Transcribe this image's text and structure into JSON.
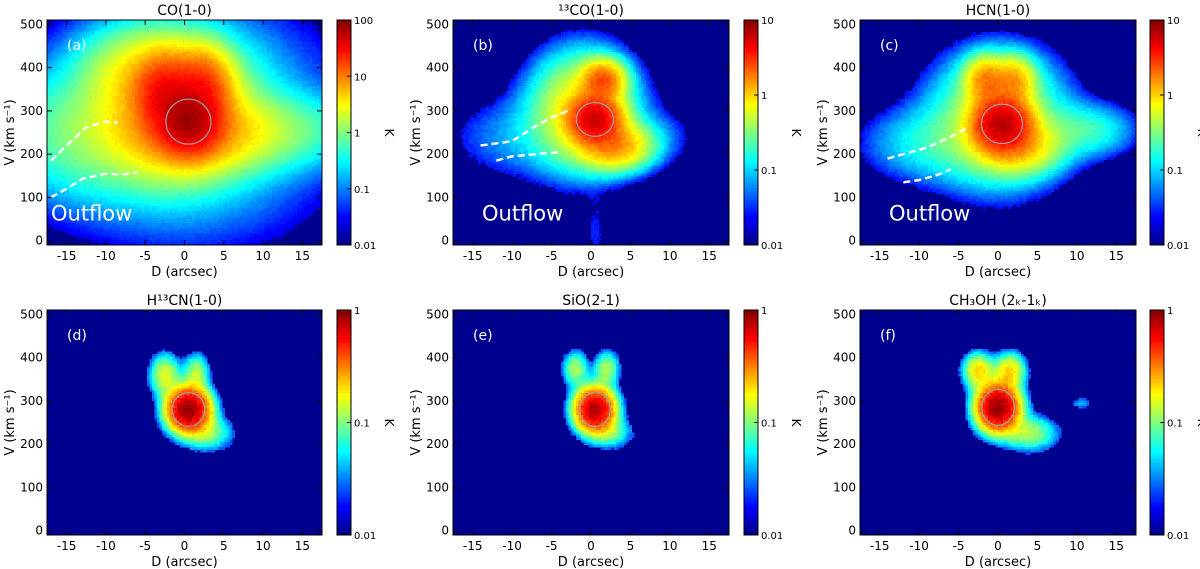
{
  "colors": {
    "background": "#00008f",
    "contour": "#a0a0a0",
    "outflow_line": "#ffffff"
  },
  "chart_data": [
    {
      "type": "heatmap",
      "panel": "(a)",
      "title": "CO(1-0)",
      "xlabel": "D (arcsec)",
      "ylabel": "V (km s⁻¹)",
      "xlim": [
        -17.5,
        17.5
      ],
      "ylim": [
        -10,
        510
      ],
      "xticks": [
        -15,
        -10,
        -5,
        0,
        5,
        10,
        15
      ],
      "yticks": [
        0,
        100,
        200,
        300,
        400,
        500
      ],
      "colorbar": {
        "label": "K",
        "scale": "log",
        "min": 0.01,
        "max": 100,
        "ticks": [
          "0.01",
          "0.1",
          "1",
          "10",
          "100"
        ]
      },
      "peak": {
        "x": 0.5,
        "y": 275,
        "value": 60
      },
      "components": [
        {
          "x": 0.5,
          "y": 275,
          "sx": 2.2,
          "sy": 40,
          "value": 55
        },
        {
          "x": -2.5,
          "y": 340,
          "sx": 2.0,
          "sy": 45,
          "value": 25
        },
        {
          "x": 2.0,
          "y": 350,
          "sx": 2.0,
          "sy": 45,
          "value": 20
        },
        {
          "x": -1.0,
          "y": 300,
          "sx": 4.5,
          "sy": 75,
          "value": 8
        },
        {
          "x": 1.0,
          "y": 250,
          "sx": 5.0,
          "sy": 45,
          "value": 6
        },
        {
          "x": -5.0,
          "y": 380,
          "sx": 4.0,
          "sy": 55,
          "value": 3
        },
        {
          "x": -10.0,
          "y": 250,
          "sx": 6.5,
          "sy": 75,
          "value": 1.2
        },
        {
          "x": 9.0,
          "y": 255,
          "sx": 6.0,
          "sy": 45,
          "value": 1.2
        },
        {
          "x": 0.0,
          "y": 280,
          "sx": 9.0,
          "sy": 130,
          "value": 0.5
        }
      ],
      "annotation": "Outflow",
      "outflow_curves": [
        [
          [
            -17,
            185
          ],
          [
            -15,
            220
          ],
          [
            -12.5,
            262
          ],
          [
            -10,
            275
          ],
          [
            -8.5,
            273
          ]
        ],
        [
          [
            -17,
            100
          ],
          [
            -15,
            120
          ],
          [
            -13,
            143
          ],
          [
            -10,
            155
          ],
          [
            -8,
            153
          ],
          [
            -6,
            158
          ]
        ]
      ]
    },
    {
      "type": "heatmap",
      "panel": "(b)",
      "title": "¹³CO(1-0)",
      "xlabel": "D (arcsec)",
      "ylabel": "V (km s⁻¹)",
      "xlim": [
        -17.5,
        17.5
      ],
      "ylim": [
        -10,
        510
      ],
      "xticks": [
        -15,
        -10,
        -5,
        0,
        5,
        10,
        15
      ],
      "yticks": [
        0,
        100,
        200,
        300,
        400,
        500
      ],
      "colorbar": {
        "label": "K",
        "scale": "log",
        "min": 0.01,
        "max": 10,
        "ticks": [
          "0.01",
          "0.1",
          "1",
          "10"
        ]
      },
      "peak": {
        "x": 0.5,
        "y": 280,
        "value": 5
      },
      "components": [
        {
          "x": 0.5,
          "y": 280,
          "sx": 1.8,
          "sy": 30,
          "value": 5
        },
        {
          "x": 1.5,
          "y": 370,
          "sx": 1.5,
          "sy": 25,
          "value": 2.2
        },
        {
          "x": 3.0,
          "y": 220,
          "sx": 2.5,
          "sy": 30,
          "value": 1.5
        },
        {
          "x": -1.0,
          "y": 300,
          "sx": 3.5,
          "sy": 70,
          "value": 0.9
        },
        {
          "x": -8.0,
          "y": 240,
          "sx": 5.5,
          "sy": 55,
          "value": 0.08
        },
        {
          "x": 0.5,
          "y": 20,
          "sx": 0.9,
          "sy": 55,
          "value": 0.03
        },
        {
          "x": 8.0,
          "y": 240,
          "sx": 3.0,
          "sy": 40,
          "value": 0.05
        }
      ],
      "annotation": "Outflow",
      "outflow_curves": [
        [
          [
            -14,
            220
          ],
          [
            -10,
            230
          ],
          [
            -7,
            265
          ],
          [
            -5,
            285
          ],
          [
            -3,
            300
          ]
        ],
        [
          [
            -12,
            185
          ],
          [
            -10,
            195
          ],
          [
            -7,
            200
          ],
          [
            -4,
            205
          ]
        ]
      ]
    },
    {
      "type": "heatmap",
      "panel": "(c)",
      "title": "HCN(1-0)",
      "xlabel": "D (arcsec)",
      "ylabel": "V (km s⁻¹)",
      "xlim": [
        -17.5,
        17.5
      ],
      "ylim": [
        -10,
        510
      ],
      "xticks": [
        -15,
        -10,
        -5,
        0,
        5,
        10,
        15
      ],
      "yticks": [
        0,
        100,
        200,
        300,
        400,
        500
      ],
      "colorbar": {
        "label": "K",
        "scale": "log",
        "min": 0.01,
        "max": 10,
        "ticks": [
          "0.01",
          "0.1",
          "1",
          "10"
        ]
      },
      "peak": {
        "x": 0.5,
        "y": 270,
        "value": 6
      },
      "components": [
        {
          "x": 0.5,
          "y": 270,
          "sx": 2.0,
          "sy": 35,
          "value": 6
        },
        {
          "x": -1.5,
          "y": 370,
          "sx": 1.5,
          "sy": 30,
          "value": 1.5
        },
        {
          "x": 2.0,
          "y": 370,
          "sx": 1.5,
          "sy": 30,
          "value": 1.2
        },
        {
          "x": 2.5,
          "y": 220,
          "sx": 3.0,
          "sy": 35,
          "value": 1.0
        },
        {
          "x": 0.0,
          "y": 280,
          "sx": 4.5,
          "sy": 80,
          "value": 0.6
        },
        {
          "x": -8.0,
          "y": 225,
          "sx": 5.0,
          "sy": 50,
          "value": 0.15
        },
        {
          "x": 11.0,
          "y": 255,
          "sx": 3.5,
          "sy": 35,
          "value": 0.2
        }
      ],
      "annotation": "Outflow",
      "outflow_curves": [
        [
          [
            -14,
            190
          ],
          [
            -12,
            200
          ],
          [
            -9,
            215
          ],
          [
            -6,
            240
          ],
          [
            -4,
            260
          ]
        ],
        [
          [
            -12,
            135
          ],
          [
            -10,
            140
          ],
          [
            -8,
            150
          ],
          [
            -6,
            165
          ]
        ]
      ]
    },
    {
      "type": "heatmap",
      "panel": "(d)",
      "title": "H¹³CN(1-0)",
      "xlabel": "D (arcsec)",
      "ylabel": "V (km s⁻¹)",
      "xlim": [
        -17.5,
        17.5
      ],
      "ylim": [
        -10,
        510
      ],
      "xticks": [
        -15,
        -10,
        -5,
        0,
        5,
        10,
        15
      ],
      "yticks": [
        0,
        100,
        200,
        300,
        400,
        500
      ],
      "colorbar": {
        "label": "K",
        "scale": "log",
        "min": 0.01,
        "max": 1,
        "ticks": [
          "0.01",
          "0.1",
          "1"
        ]
      },
      "peak": {
        "x": 0.5,
        "y": 280,
        "value": 0.9
      },
      "components": [
        {
          "x": 0.5,
          "y": 280,
          "sx": 1.6,
          "sy": 30,
          "value": 0.9
        },
        {
          "x": -2.5,
          "y": 360,
          "sx": 1.2,
          "sy": 30,
          "value": 0.15
        },
        {
          "x": 1.5,
          "y": 365,
          "sx": 1.0,
          "sy": 28,
          "value": 0.12
        },
        {
          "x": 3.0,
          "y": 225,
          "sx": 2.0,
          "sy": 25,
          "value": 0.1
        }
      ],
      "annotation": "",
      "outflow_curves": []
    },
    {
      "type": "heatmap",
      "panel": "(e)",
      "title": "SiO(2-1)",
      "xlabel": "D (arcsec)",
      "ylabel": "V (km s⁻¹)",
      "xlim": [
        -17.5,
        17.5
      ],
      "ylim": [
        -10,
        510
      ],
      "xticks": [
        -15,
        -10,
        -5,
        0,
        5,
        10,
        15
      ],
      "yticks": [
        0,
        100,
        200,
        300,
        400,
        500
      ],
      "colorbar": {
        "label": "K",
        "scale": "log",
        "min": 0.01,
        "max": 1,
        "ticks": [
          "0.01",
          "0.1",
          "1"
        ]
      },
      "peak": {
        "x": 0.5,
        "y": 280,
        "value": 0.8
      },
      "components": [
        {
          "x": 0.5,
          "y": 280,
          "sx": 1.5,
          "sy": 30,
          "value": 0.8
        },
        {
          "x": -2.0,
          "y": 375,
          "sx": 1.0,
          "sy": 25,
          "value": 0.12
        },
        {
          "x": 2.0,
          "y": 375,
          "sx": 1.0,
          "sy": 25,
          "value": 0.12
        },
        {
          "x": 2.5,
          "y": 225,
          "sx": 1.8,
          "sy": 22,
          "value": 0.08
        }
      ],
      "annotation": "",
      "outflow_curves": []
    },
    {
      "type": "heatmap",
      "panel": "(f)",
      "title": "CH₃OH (2ₖ-1ₖ)",
      "xlabel": "D (arcsec)",
      "ylabel": "V (km s⁻¹)",
      "xlim": [
        -17.5,
        17.5
      ],
      "ylim": [
        -10,
        510
      ],
      "xticks": [
        -15,
        -10,
        -5,
        0,
        5,
        10,
        15
      ],
      "yticks": [
        0,
        100,
        200,
        300,
        400,
        500
      ],
      "colorbar": {
        "label": "K",
        "scale": "log",
        "min": 0.01,
        "max": 1,
        "ticks": [
          "0.01",
          "0.1",
          "1"
        ]
      },
      "peak": {
        "x": 0.0,
        "y": 285,
        "value": 0.9
      },
      "components": [
        {
          "x": 0.0,
          "y": 285,
          "sx": 1.6,
          "sy": 32,
          "value": 0.9
        },
        {
          "x": -2.5,
          "y": 370,
          "sx": 1.2,
          "sy": 25,
          "value": 0.2
        },
        {
          "x": 1.5,
          "y": 370,
          "sx": 1.2,
          "sy": 25,
          "value": 0.2
        },
        {
          "x": 4.0,
          "y": 225,
          "sx": 2.2,
          "sy": 25,
          "value": 0.12
        },
        {
          "x": 10.5,
          "y": 295,
          "sx": 1.0,
          "sy": 10,
          "value": 0.04
        }
      ],
      "annotation": "",
      "outflow_curves": []
    }
  ]
}
